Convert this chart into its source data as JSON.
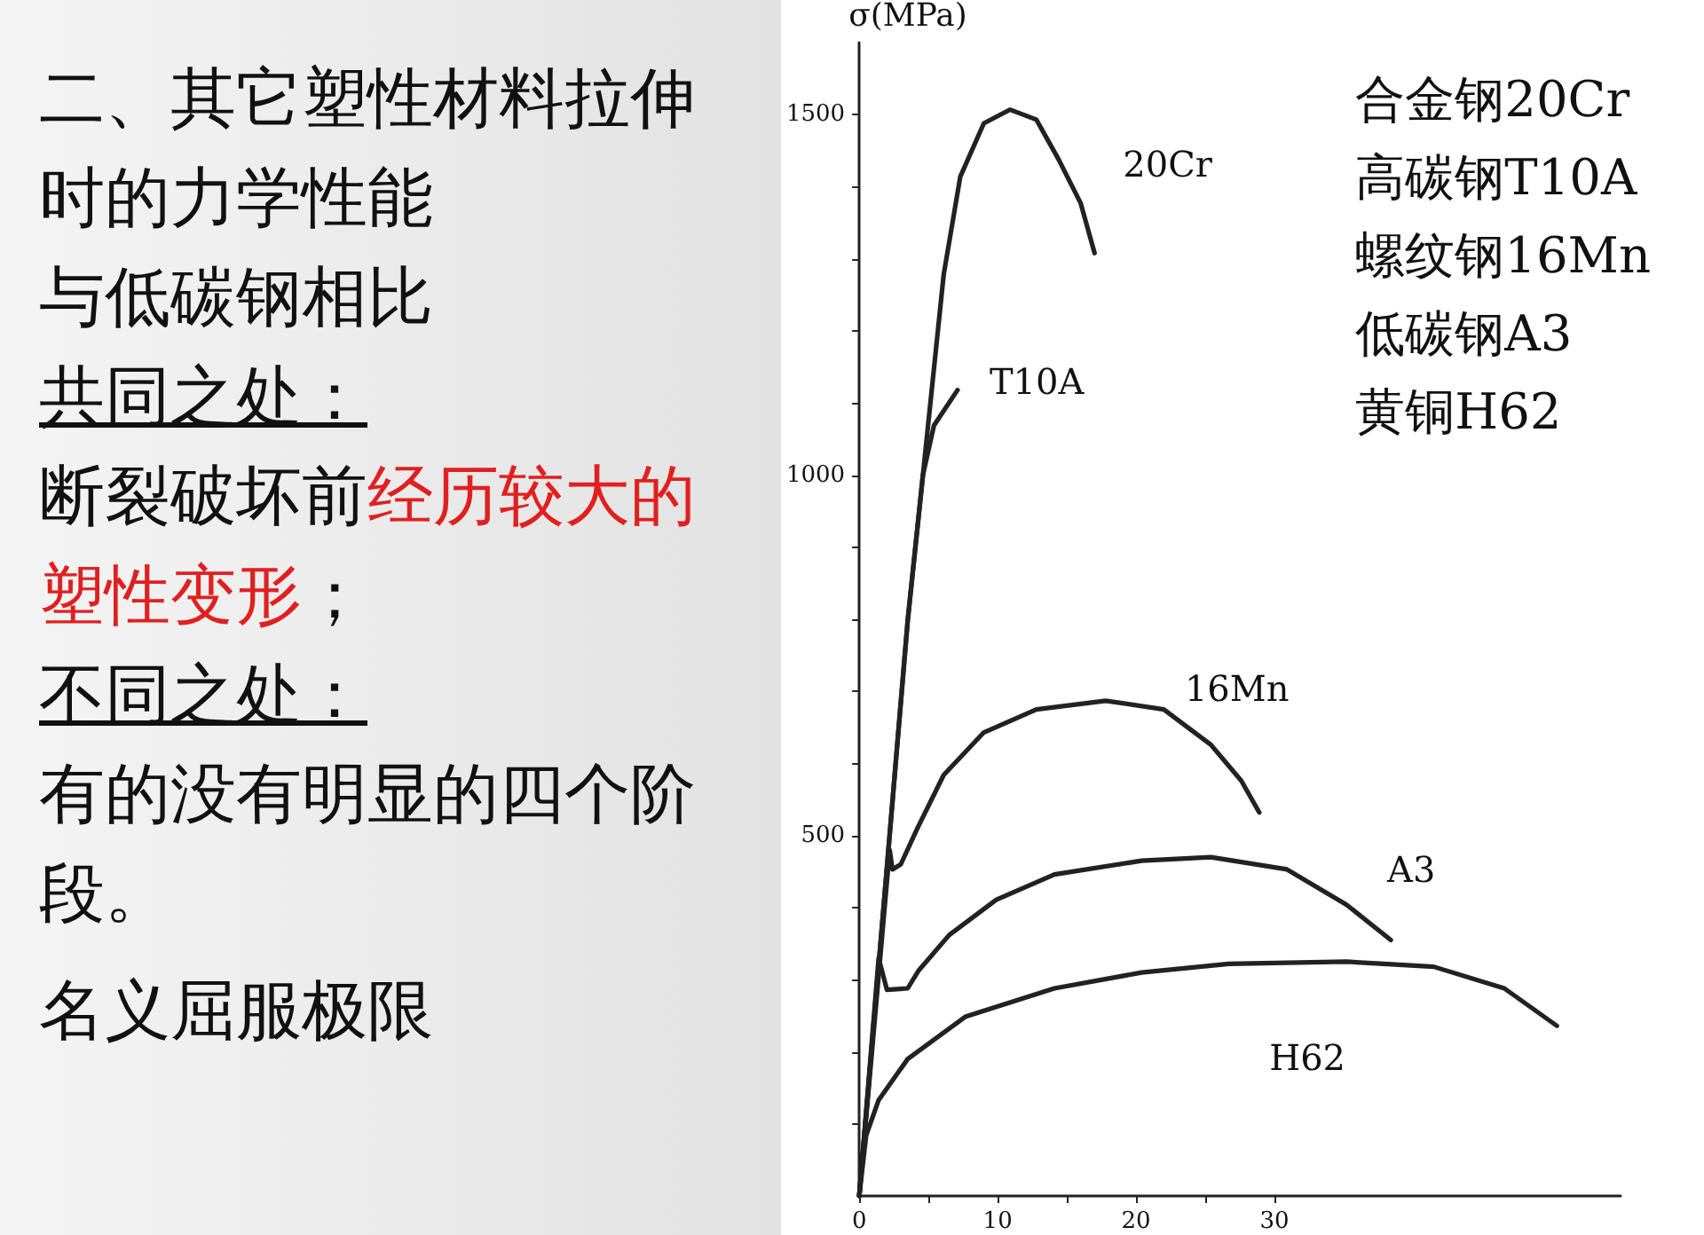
{
  "chart_data": {
    "type": "line",
    "title": "二、其它塑性材料拉伸时的力学性能",
    "ylabel": "σ(MPa)",
    "xlim": [
      0,
      55
    ],
    "ylim": [
      0,
      1600
    ],
    "xticks": [
      0,
      {
        "value": 5,
        "label": null
      },
      10,
      {
        "value": 15,
        "label": null
      },
      20,
      {
        "value": 25,
        "label": null
      },
      30
    ],
    "yticks": [
      {
        "value": 100,
        "label": null
      },
      {
        "value": 200,
        "label": null
      },
      {
        "value": 300,
        "label": null
      },
      {
        "value": 400,
        "label": null
      },
      500,
      {
        "value": 600,
        "label": null
      },
      {
        "value": 700,
        "label": null
      },
      {
        "value": 800,
        "label": null
      },
      {
        "value": 900,
        "label": null
      },
      1000,
      {
        "value": 1100,
        "label": null
      },
      {
        "value": 1200,
        "label": null
      },
      {
        "value": 1300,
        "label": null
      },
      {
        "value": 1400,
        "label": null
      },
      1500
    ],
    "grid": false,
    "legend": false,
    "marker": "none",
    "line_style": "solid",
    "series": [
      {
        "name": "20Cr",
        "color": "#222222",
        "x": [
          0,
          3.5,
          4.6,
          6.1,
          7.3,
          9,
          10.9,
          12.8,
          14.4,
          16,
          17
        ],
        "values": [
          0,
          798,
          1000,
          1278,
          1414,
          1488,
          1507,
          1493,
          1438,
          1377,
          1308
        ]
      },
      {
        "name": "T10A",
        "color": "#222222",
        "x": [
          0,
          3.5,
          4.6,
          5.4,
          7.1
        ],
        "values": [
          0,
          798,
          1000,
          1069,
          1118
        ]
      },
      {
        "name": "16Mn",
        "color": "#222222",
        "x": [
          0,
          2.2,
          2.4,
          3,
          4.2,
          6.1,
          9,
          12.8,
          17.8,
          22,
          25.4,
          27.6,
          28.9
        ],
        "values": [
          0,
          480,
          453,
          460,
          510,
          584,
          643,
          675,
          687,
          675,
          626,
          576,
          532
        ]
      },
      {
        "name": "A3",
        "color": "#222222",
        "x": [
          0,
          1.4,
          2,
          3.5,
          4.3,
          6.5,
          9.9,
          14.1,
          20.4,
          25.4,
          30.9,
          35.2,
          38.4
        ],
        "values": [
          0,
          330,
          286,
          288,
          313,
          362,
          411,
          446,
          465,
          470,
          453,
          404,
          355
        ]
      },
      {
        "name": "H62",
        "color": "#222222",
        "x": [
          0,
          0.5,
          1.4,
          3.5,
          7.7,
          14.1,
          20.4,
          26.7,
          35.2,
          41.5,
          46.6,
          50.4
        ],
        "values": [
          0,
          84,
          133,
          190,
          249,
          288,
          310,
          322,
          325,
          318,
          288,
          236
        ]
      }
    ],
    "annotations": [
      "与低碳钢相比",
      "共同之处：",
      "断裂破坏前",
      "经历较大的塑性变形",
      "；",
      "不同之处：",
      "有的没有明显的四个阶段。",
      "名义屈服极限",
      "合金钢20Cr",
      "高碳钢T10A",
      "螺纹钢16Mn",
      "低碳钢A3",
      "黄铜H62"
    ]
  }
}
